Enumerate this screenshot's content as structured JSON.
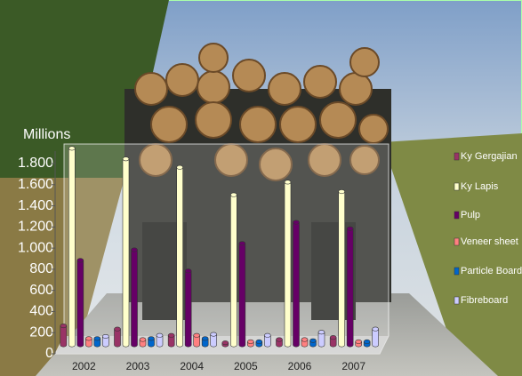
{
  "chart_data": {
    "type": "bar3d",
    "y_axis_label": "Millions",
    "categories": [
      "2002",
      "2003",
      "2004",
      "2005",
      "2006",
      "2007"
    ],
    "series": [
      {
        "name": "Ky Gergajian",
        "color": "#993366",
        "values": [
          180,
          150,
          90,
          20,
          50,
          70
        ]
      },
      {
        "name": "Ky Lapis",
        "color": "#ffffcc",
        "values": [
          1860,
          1760,
          1680,
          1420,
          1540,
          1450
        ]
      },
      {
        "name": "Pulp",
        "color": "#660066",
        "values": [
          800,
          900,
          700,
          960,
          1160,
          1100
        ]
      },
      {
        "name": "Veneer sheet",
        "color": "#ff8080",
        "values": [
          60,
          50,
          90,
          30,
          50,
          30
        ]
      },
      {
        "name": "Particle Board",
        "color": "#0066cc",
        "values": [
          60,
          60,
          60,
          30,
          40,
          30
        ]
      },
      {
        "name": "Fibreboard",
        "color": "#ccccff",
        "values": [
          80,
          90,
          100,
          90,
          120,
          150
        ]
      }
    ],
    "ylim": [
      0,
      1800
    ],
    "yticks": [
      0,
      200,
      400,
      600,
      800,
      {
        "value": 1000,
        "label": "1.000"
      },
      {
        "value": 1200,
        "label": "1.200"
      },
      {
        "value": 1400,
        "label": "1.400"
      },
      {
        "value": 1600,
        "label": "1.600"
      },
      {
        "value": 1800,
        "label": "1.800"
      }
    ],
    "legend": "right"
  }
}
